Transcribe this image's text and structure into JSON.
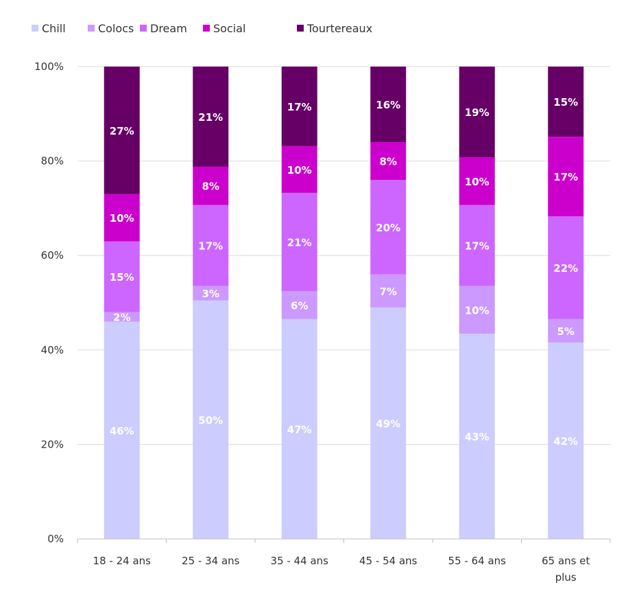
{
  "chart_data": {
    "type": "bar",
    "stacked": "percent",
    "title": "",
    "xlabel": "",
    "ylabel": "",
    "ylim": [
      0,
      100
    ],
    "yticks": [
      "0%",
      "20%",
      "40%",
      "60%",
      "80%",
      "100%"
    ],
    "grid": true,
    "legend_position": "top-left",
    "categories": [
      "18 - 24 ans",
      "25 - 34 ans",
      "35 - 44 ans",
      "45 - 54 ans",
      "55 - 64 ans",
      "65 ans et plus"
    ],
    "series": [
      {
        "name": "Chill",
        "color": "#ccccff",
        "label_color": "#ffffff",
        "values": [
          46,
          50,
          47,
          49,
          43,
          42
        ]
      },
      {
        "name": "Colocs",
        "color": "#cc99ff",
        "label_color": "#ffffff",
        "values": [
          2,
          3,
          6,
          7,
          10,
          5
        ]
      },
      {
        "name": "Dream",
        "color": "#cc66ff",
        "label_color": "#ffffff",
        "values": [
          15,
          17,
          21,
          20,
          17,
          22
        ]
      },
      {
        "name": "Social",
        "color": "#cc00cc",
        "label_color": "#ffffff",
        "values": [
          10,
          8,
          10,
          8,
          10,
          17
        ]
      },
      {
        "name": "Tourtereaux",
        "color": "#660066",
        "label_color": "#ffffff",
        "values": [
          27,
          21,
          17,
          16,
          19,
          15
        ]
      }
    ]
  }
}
